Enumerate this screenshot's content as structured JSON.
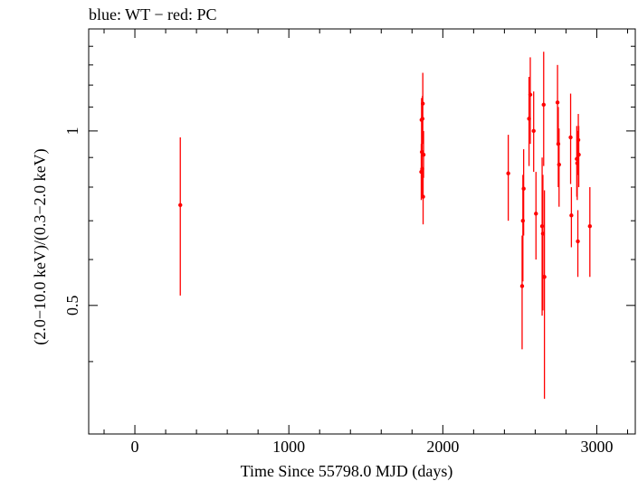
{
  "chart_data": {
    "type": "scatter",
    "title": "blue: WT − red: PC",
    "xlabel": "Time Since 55798.0 MJD (days)",
    "ylabel": "(2.0−10.0 keV)/(0.3−2.0 keV)",
    "x_ticks": [
      "0",
      "1000",
      "2000",
      "3000"
    ],
    "y_ticks": [
      "0.5",
      "1"
    ],
    "xlim": [
      -300,
      3250
    ],
    "ylim": [
      0.3,
      1.5
    ],
    "y_scale": "log",
    "grid": false,
    "colors": {
      "WT": "#0000ff",
      "PC": "#ff0000"
    },
    "series": [
      {
        "name": "PC",
        "color": "#ff0000",
        "points": [
          {
            "x": 295,
            "y": 0.745,
            "ylo": 0.52,
            "yhi": 0.975
          },
          {
            "x": 1860,
            "y": 0.85,
            "ylo": 0.76,
            "yhi": 0.95
          },
          {
            "x": 1862,
            "y": 1.045,
            "ylo": 0.93,
            "yhi": 1.14
          },
          {
            "x": 1864,
            "y": 0.92,
            "ylo": 0.82,
            "yhi": 1.03
          },
          {
            "x": 1866,
            "y": 0.86,
            "ylo": 0.77,
            "yhi": 0.96
          },
          {
            "x": 1868,
            "y": 1.05,
            "ylo": 0.95,
            "yhi": 1.15
          },
          {
            "x": 1870,
            "y": 1.115,
            "ylo": 1.0,
            "yhi": 1.26
          },
          {
            "x": 1872,
            "y": 0.77,
            "ylo": 0.69,
            "yhi": 0.86
          },
          {
            "x": 1875,
            "y": 0.91,
            "ylo": 0.83,
            "yhi": 1.0
          },
          {
            "x": 2425,
            "y": 0.845,
            "ylo": 0.7,
            "yhi": 0.985
          },
          {
            "x": 2515,
            "y": 0.54,
            "ylo": 0.42,
            "yhi": 0.66
          },
          {
            "x": 2520,
            "y": 0.7,
            "ylo": 0.55,
            "yhi": 0.84
          },
          {
            "x": 2525,
            "y": 0.795,
            "ylo": 0.66,
            "yhi": 0.93
          },
          {
            "x": 2560,
            "y": 1.05,
            "ylo": 0.87,
            "yhi": 1.24
          },
          {
            "x": 2568,
            "y": 1.155,
            "ylo": 0.95,
            "yhi": 1.34
          },
          {
            "x": 2590,
            "y": 1.0,
            "ylo": 0.85,
            "yhi": 1.17
          },
          {
            "x": 2605,
            "y": 0.72,
            "ylo": 0.6,
            "yhi": 0.85
          },
          {
            "x": 2645,
            "y": 0.685,
            "ylo": 0.48,
            "yhi": 0.9
          },
          {
            "x": 2650,
            "y": 0.665,
            "ylo": 0.49,
            "yhi": 0.84
          },
          {
            "x": 2655,
            "y": 1.11,
            "ylo": 0.87,
            "yhi": 1.37
          },
          {
            "x": 2660,
            "y": 0.56,
            "ylo": 0.345,
            "yhi": 0.79
          },
          {
            "x": 2745,
            "y": 1.12,
            "ylo": 0.95,
            "yhi": 1.3
          },
          {
            "x": 2750,
            "y": 0.95,
            "ylo": 0.8,
            "yhi": 1.1
          },
          {
            "x": 2755,
            "y": 0.875,
            "ylo": 0.74,
            "yhi": 1.01
          },
          {
            "x": 2830,
            "y": 0.975,
            "ylo": 0.81,
            "yhi": 1.16
          },
          {
            "x": 2835,
            "y": 0.715,
            "ylo": 0.63,
            "yhi": 0.8
          },
          {
            "x": 2870,
            "y": 0.895,
            "ylo": 0.77,
            "yhi": 1.02
          },
          {
            "x": 2873,
            "y": 0.88,
            "ylo": 0.76,
            "yhi": 1.0
          },
          {
            "x": 2877,
            "y": 0.645,
            "ylo": 0.56,
            "yhi": 0.73
          },
          {
            "x": 2880,
            "y": 0.965,
            "ylo": 0.84,
            "yhi": 1.07
          },
          {
            "x": 2883,
            "y": 0.91,
            "ylo": 0.8,
            "yhi": 1.02
          },
          {
            "x": 2955,
            "y": 0.685,
            "ylo": 0.56,
            "yhi": 0.8
          }
        ]
      }
    ]
  }
}
